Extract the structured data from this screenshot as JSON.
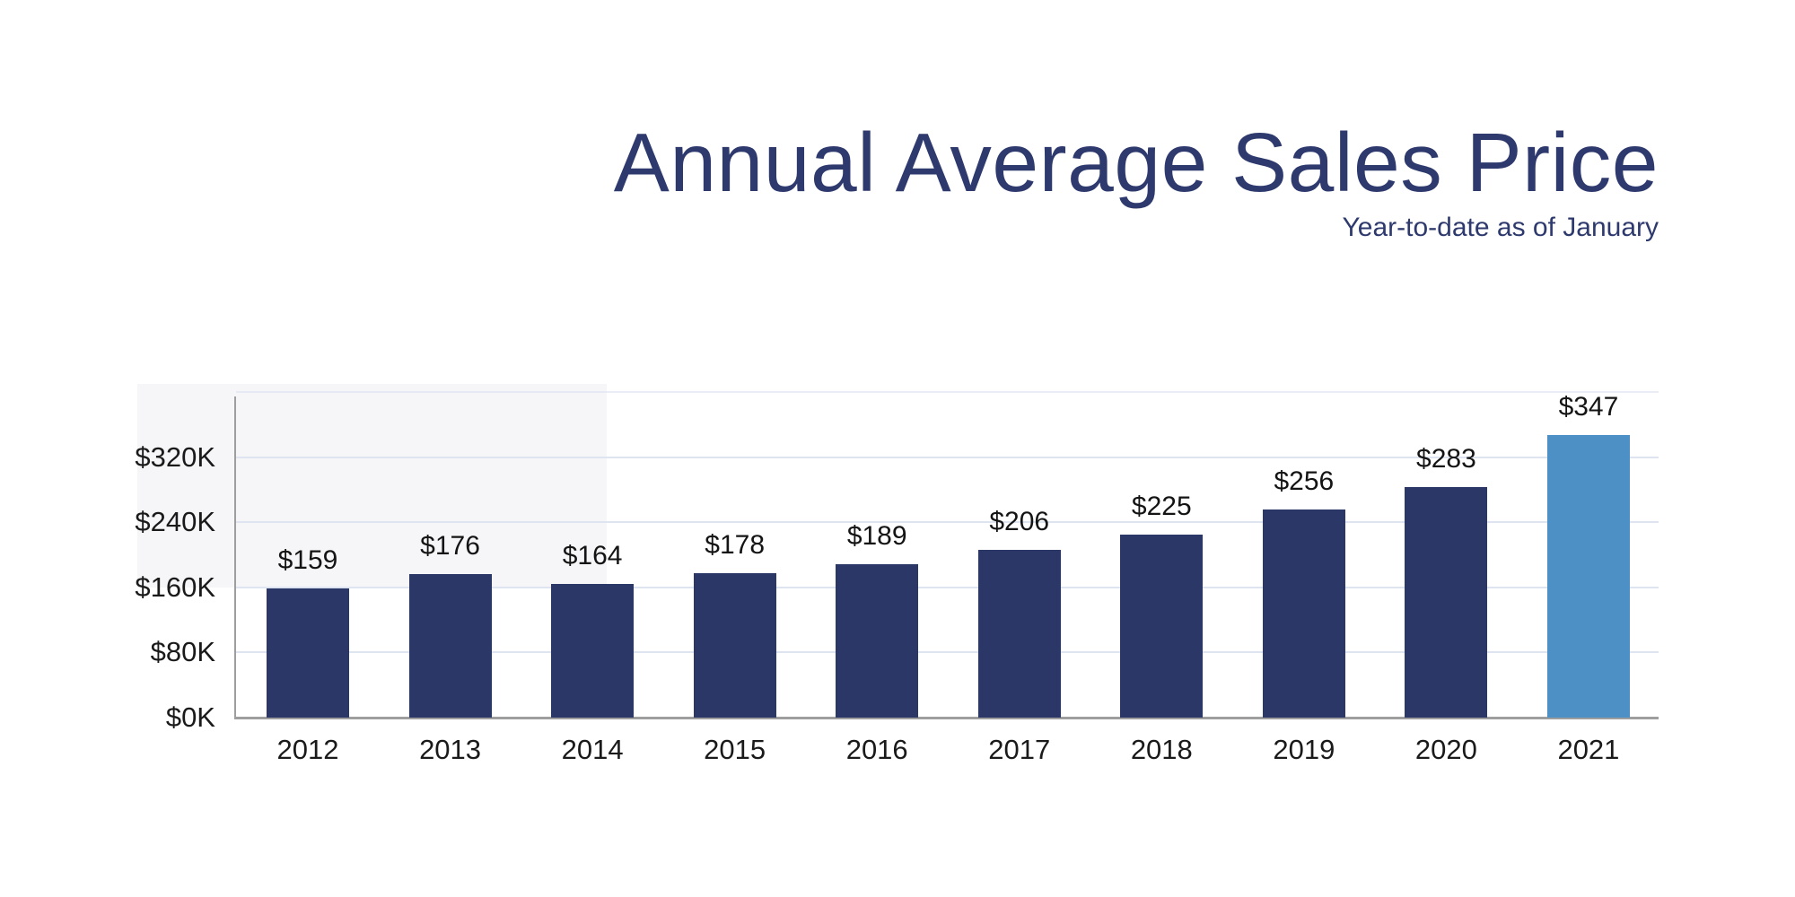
{
  "page": {
    "background": "#ffffff"
  },
  "chart_data": {
    "type": "bar",
    "title": "Annual Average Sales Price",
    "subtitle": "Year-to-date as of January",
    "categories": [
      "2012",
      "2013",
      "2014",
      "2015",
      "2016",
      "2017",
      "2018",
      "2019",
      "2020",
      "2021"
    ],
    "values": [
      159,
      176,
      164,
      178,
      189,
      206,
      225,
      256,
      283,
      347
    ],
    "value_labels": [
      "$159",
      "$176",
      "$164",
      "$178",
      "$189",
      "$206",
      "$225",
      "$256",
      "$283",
      "$347"
    ],
    "yticks": [
      {
        "value": 0,
        "label": "$0K"
      },
      {
        "value": 80,
        "label": "$80K"
      },
      {
        "value": 160,
        "label": "$160K"
      },
      {
        "value": 240,
        "label": "$240K"
      },
      {
        "value": 320,
        "label": "$320K"
      }
    ],
    "unlabeled_gridlines": [
      400
    ],
    "ylim": [
      0,
      408
    ],
    "grid": true,
    "legend": "none",
    "highlight_index": 9,
    "colors": {
      "bar": "#2b3766",
      "highlight_bar": "#4d90c6",
      "title": "#2e3a6e",
      "subtitle": "#2e3a6e",
      "grid": "#dfe4f1",
      "axis": "#9e9e9e",
      "label": "#1a1a1a",
      "bg_tint": "#f6f6f8"
    }
  }
}
